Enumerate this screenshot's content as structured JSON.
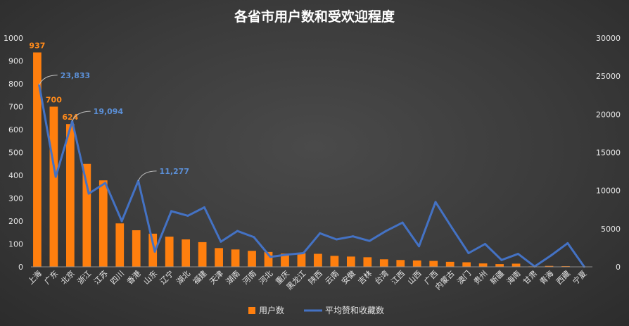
{
  "chart_data": {
    "type": "bar+line",
    "title": "各省市用户数和受欢迎程度",
    "categories": [
      "上海",
      "广东",
      "北京",
      "浙江",
      "江苏",
      "四川",
      "香港",
      "山东",
      "辽宁",
      "湖北",
      "福建",
      "天津",
      "湖南",
      "河南",
      "河北",
      "重庆",
      "黑龙江",
      "陕西",
      "云南",
      "安徽",
      "吉林",
      "台湾",
      "江西",
      "山西",
      "广西",
      "内蒙古",
      "澳门",
      "贵州",
      "新疆",
      "海南",
      "甘肃",
      "青海",
      "西藏",
      "宁夏"
    ],
    "series": [
      {
        "name": "用户数",
        "type": "bar",
        "axis": "left",
        "color": "#ff7f0e",
        "values": [
          937,
          700,
          624,
          450,
          378,
          190,
          160,
          145,
          132,
          120,
          108,
          82,
          76,
          70,
          65,
          58,
          60,
          57,
          48,
          45,
          42,
          33,
          30,
          28,
          26,
          22,
          20,
          15,
          12,
          14,
          2,
          4,
          3,
          1
        ]
      },
      {
        "name": "平均赞和收藏数",
        "type": "line",
        "axis": "right",
        "color": "#4472c4",
        "values": [
          23833,
          11800,
          19094,
          9600,
          11000,
          6000,
          11277,
          2000,
          7300,
          6700,
          7800,
          3300,
          4700,
          3900,
          1300,
          1600,
          1800,
          4400,
          3600,
          4000,
          3400,
          4700,
          5800,
          2700,
          8500,
          5100,
          1800,
          3000,
          900,
          1700,
          50,
          1500,
          3100,
          20
        ]
      }
    ],
    "annotations": [
      {
        "series": "用户数",
        "category": "上海",
        "text": "937"
      },
      {
        "series": "用户数",
        "category": "广东",
        "text": "700"
      },
      {
        "series": "用户数",
        "category": "北京",
        "text": "624"
      },
      {
        "series": "平均赞和收藏数",
        "category": "上海",
        "text": "23,833"
      },
      {
        "series": "平均赞和收藏数",
        "category": "北京",
        "text": "19,094"
      },
      {
        "series": "平均赞和收藏数",
        "category": "香港",
        "text": "11,277"
      }
    ],
    "left_axis": {
      "min": 0,
      "max": 1000,
      "ticks": [
        "0",
        "100",
        "200",
        "300",
        "400",
        "500",
        "600",
        "700",
        "800",
        "900",
        "1000"
      ]
    },
    "right_axis": {
      "min": 0,
      "max": 30000,
      "ticks": [
        "0",
        "5000",
        "10000",
        "15000",
        "20000",
        "25000",
        "30000"
      ]
    },
    "grid": false,
    "legend": "bottom-center"
  }
}
